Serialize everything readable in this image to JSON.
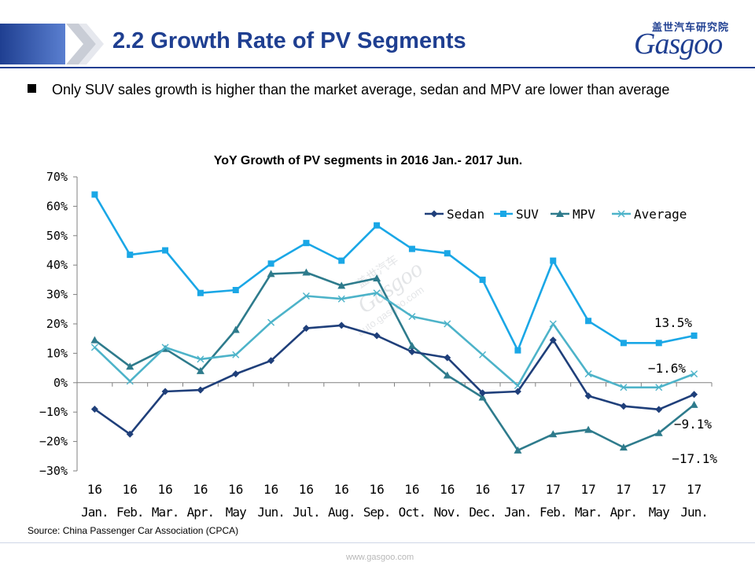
{
  "header": {
    "title": "2.2 Growth Rate of PV Segments",
    "logo_cn": "盖世汽车研究院",
    "logo_en": "Gasgoo"
  },
  "bullet": {
    "text": "Only SUV sales growth is higher than the market average, sedan and MPV are lower than average"
  },
  "watermark": {
    "cn": "盖世汽车",
    "brand": "Gasgoo",
    "url": "auto.gasgoo.com"
  },
  "chart_data": {
    "type": "line",
    "title": "YoY Growth of PV segments in 2016 Jan.- 2017 Jun.",
    "xlabel": "",
    "ylabel": "",
    "ylim": [
      -30,
      70
    ],
    "yticks": [
      "70%",
      "60%",
      "50%",
      "40%",
      "30%",
      "20%",
      "10%",
      "0%",
      "−10%",
      "−20%",
      "−30%"
    ],
    "ytick_values": [
      70,
      60,
      50,
      40,
      30,
      20,
      10,
      0,
      -10,
      -20,
      -30
    ],
    "categories_year": [
      "16",
      "16",
      "16",
      "16",
      "16",
      "16",
      "16",
      "16",
      "16",
      "16",
      "16",
      "16",
      "17",
      "17",
      "17",
      "17",
      "17",
      "17"
    ],
    "categories_month": [
      "Jan.",
      "Feb.",
      "Mar.",
      "Apr.",
      "May",
      "Jun.",
      "Jul.",
      "Aug.",
      "Sep.",
      "Oct.",
      "Nov.",
      "Dec.",
      "Jan.",
      "Feb.",
      "Mar.",
      "Apr.",
      "May",
      "Jun."
    ],
    "legend_position": "top-right",
    "grid": false,
    "series": [
      {
        "name": "Sedan",
        "color": "#1f3f7a",
        "marker": "diamond",
        "values": [
          -9,
          -17.5,
          -3,
          -2.5,
          3,
          7.5,
          18.5,
          19.5,
          16,
          10.5,
          8.5,
          -3.5,
          -3,
          14.5,
          -4.5,
          -8,
          -9.1,
          -4
        ]
      },
      {
        "name": "SUV",
        "color": "#1aa7e6",
        "marker": "square",
        "values": [
          64,
          43.5,
          45,
          30.5,
          31.5,
          40.5,
          47.5,
          41.5,
          53.5,
          45.5,
          44,
          35,
          11,
          41.5,
          21,
          13.5,
          13.5,
          16
        ]
      },
      {
        "name": "MPV",
        "color": "#2e7b8c",
        "marker": "triangle",
        "values": [
          14.5,
          5.5,
          11.5,
          4,
          18,
          37,
          37.5,
          33,
          35.5,
          12.5,
          2.5,
          -5,
          -23,
          -17.5,
          -16,
          -22,
          -17.1,
          -7.5
        ]
      },
      {
        "name": "Average",
        "color": "#4db3c9",
        "marker": "x",
        "values": [
          12,
          0.5,
          12,
          8,
          9.5,
          20.5,
          29.5,
          28.5,
          30.5,
          22.5,
          20,
          9.5,
          -1,
          20,
          3,
          -1.6,
          -1.6,
          3
        ]
      }
    ],
    "annotations": [
      {
        "text": "13.5%",
        "series": "SUV"
      },
      {
        "text": "−1.6%",
        "series": "Average"
      },
      {
        "text": "−9.1%",
        "series": "Sedan"
      },
      {
        "text": "−17.1%",
        "series": "MPV"
      }
    ]
  },
  "source": "Source: China Passenger Car Association (CPCA)",
  "footer": {
    "url": "www.gasgoo.com"
  }
}
